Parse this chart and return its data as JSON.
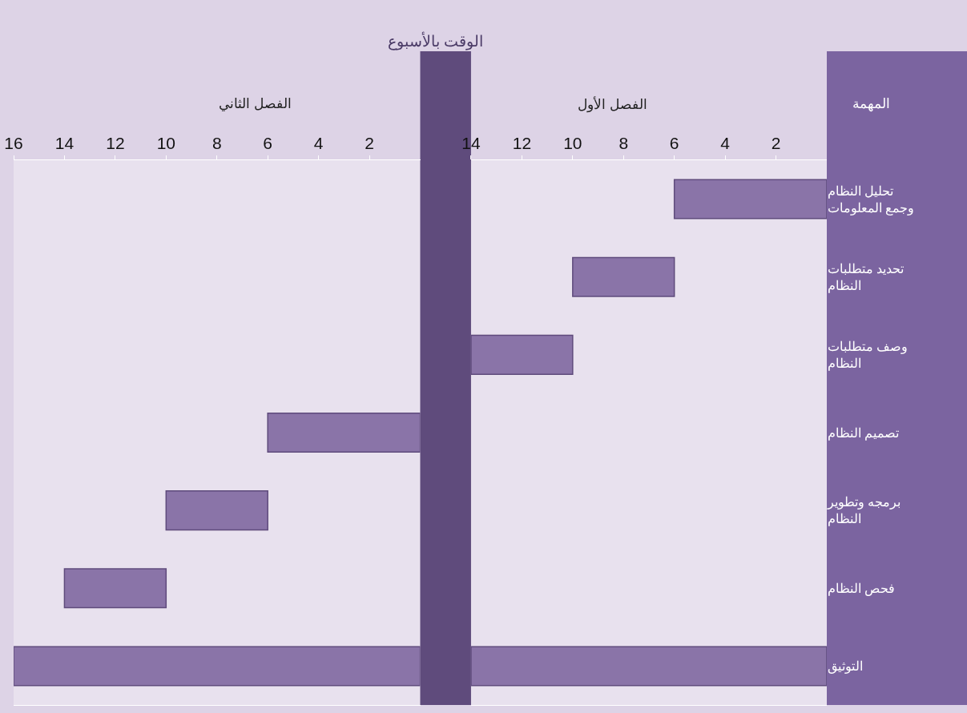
{
  "chart_data": [
    {
      "type": "bar",
      "orientation": "horizontal",
      "annotations": [
        "الفصل الثاني"
      ],
      "tick_labels": "x",
      "categories": [
        "تحليل النظام وجمع المعلومات",
        "تحديد متطلبات النظام",
        "وصف متطلبات النظام",
        "تصميم النظام",
        "برمجه وتطوير النظام",
        "فحص النظام",
        "التوثيق"
      ],
      "series": [
        {
          "color": "#8a74a8",
          "base": [
            null,
            null,
            null,
            0,
            6,
            10,
            0
          ],
          "values": [
            null,
            null,
            null,
            6,
            4,
            4,
            16
          ]
        }
      ],
      "xlim": [
        16,
        0
      ],
      "xticks": [
        2,
        4,
        6,
        8,
        10,
        12,
        14,
        16
      ]
    },
    {
      "type": "bar",
      "orientation": "horizontal",
      "title": "الوقت بالأسبوع",
      "ylabel": "المهمة",
      "annotations": [
        "الفصل الأول"
      ],
      "categories": [
        "تحليل النظام وجمع المعلومات",
        "تحديد متطلبات النظام",
        "وصف متطلبات النظام",
        "تصميم النظام",
        "برمجه وتطوير النظام",
        "فحص النظام",
        "التوثيق"
      ],
      "series": [
        {
          "color": "#8a74a8",
          "base": [
            0,
            6,
            10,
            null,
            null,
            null,
            0
          ],
          "values": [
            6,
            4,
            4,
            null,
            null,
            null,
            14
          ]
        }
      ],
      "xlim": [
        14,
        0
      ],
      "xticks": [
        2,
        4,
        6,
        8,
        10,
        12,
        14
      ]
    }
  ]
}
